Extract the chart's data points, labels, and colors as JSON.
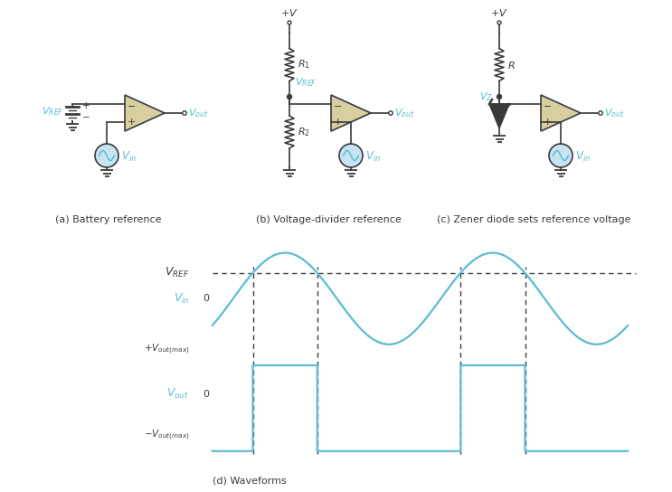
{
  "bg_color": "#ffffff",
  "circuit_color": "#3a3a3a",
  "cyan_color": "#5bbcd4",
  "opamp_fill": "#d8cfa0",
  "fig_width": 7.43,
  "fig_height": 5.44,
  "labels": {
    "a": "(a) Battery reference",
    "b": "(b) Voltage-divider reference",
    "c": "(c) Zener diode sets reference voltage",
    "d": "(d) Waveforms"
  }
}
